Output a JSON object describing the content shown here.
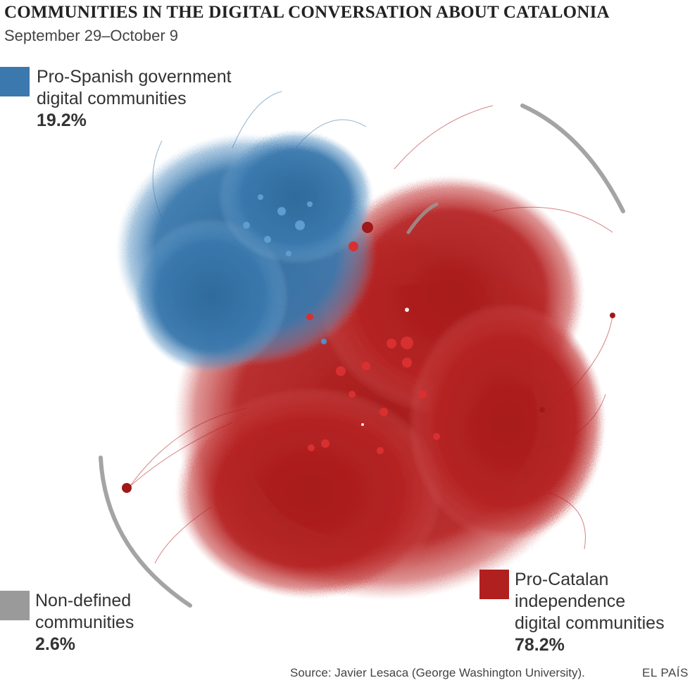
{
  "header": {
    "title": "COMMUNITIES IN THE DIGITAL CONVERSATION ABOUT CATALONIA",
    "subtitle": "September 29–October 9"
  },
  "legend": {
    "spanish": {
      "line1": "Pro-Spanish government",
      "line2": "digital communities",
      "pct": "19.2%",
      "color": "#3a78ad"
    },
    "nondefined": {
      "line1": "Non-defined",
      "line2": "communities",
      "pct": "2.6%",
      "color": "#9a9a9a"
    },
    "catalan": {
      "line1": "Pro-Catalan",
      "line2": "independence",
      "line3": "digital communities",
      "pct": "78.2%",
      "color": "#b0201f"
    }
  },
  "footer": {
    "source": "Source: Javier Lesaca (George Washington University).",
    "brand": "EL PAÍS"
  }
}
